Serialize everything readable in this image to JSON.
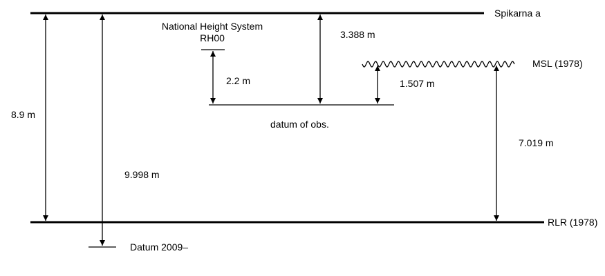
{
  "labels": {
    "spikarna": "Spikarna a",
    "msl": "MSL (1978)",
    "rlr": "RLR (1978)",
    "datum_2009": "Datum 2009–",
    "datum_obs": "datum of obs.",
    "nhs_line1": "National Height System",
    "nhs_line2": "RH00"
  },
  "measurements": {
    "spikarna_to_rlr": "8.9 m",
    "spikarna_to_datum2009": "9.998 m",
    "rh00_to_datum_obs": "2.2 m",
    "spikarna_to_datum_obs": "3.388 m",
    "msl_to_datum_obs": "1.507 m",
    "msl_to_rlr": "7.019 m"
  },
  "colors": {
    "line": "#000000",
    "background": "#ffffff"
  }
}
